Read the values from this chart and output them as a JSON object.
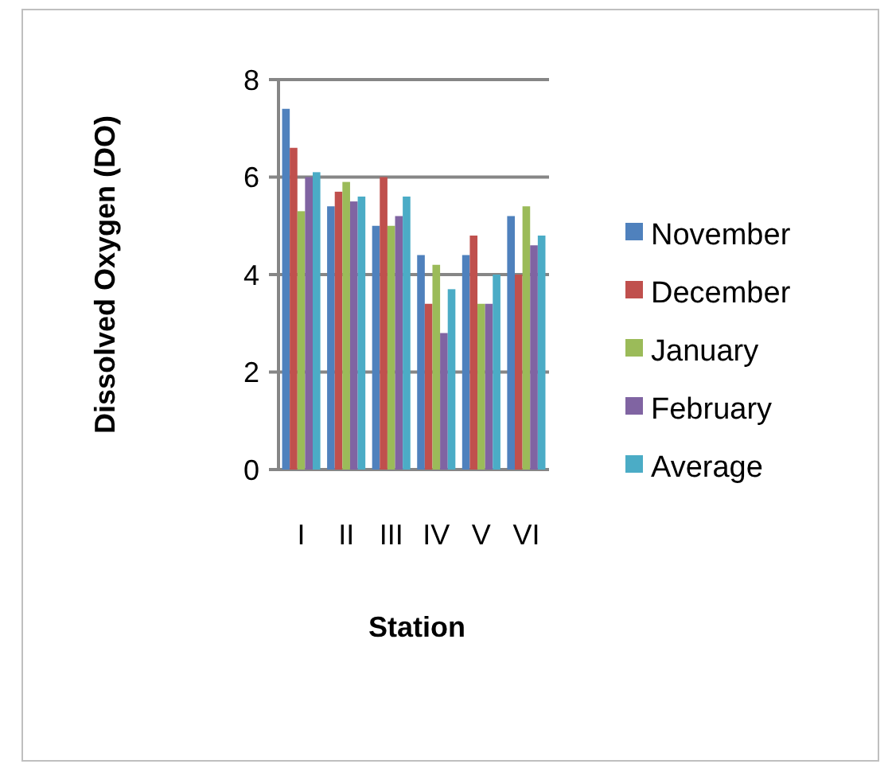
{
  "chart_data": {
    "type": "bar",
    "xlabel": "Station",
    "ylabel": "Dissolved Oxygen (DO)",
    "categories": [
      "I",
      "II",
      "III",
      "IV",
      "V",
      "VI"
    ],
    "series": [
      {
        "name": "November",
        "color": "#4f81bd",
        "values": [
          7.4,
          5.4,
          5.0,
          4.4,
          4.4,
          5.2
        ]
      },
      {
        "name": "December",
        "color": "#c0504d",
        "values": [
          6.6,
          5.7,
          6.0,
          3.4,
          4.8,
          4.0
        ]
      },
      {
        "name": "January",
        "color": "#9bbb59",
        "values": [
          5.3,
          5.9,
          5.0,
          4.2,
          3.4,
          5.4
        ]
      },
      {
        "name": "February",
        "color": "#8064a2",
        "values": [
          6.0,
          5.5,
          5.2,
          2.8,
          3.4,
          4.6
        ]
      },
      {
        "name": "Average",
        "color": "#4bacc6",
        "values": [
          6.1,
          5.6,
          5.6,
          3.7,
          4.0,
          4.8
        ]
      }
    ],
    "ylim": [
      0,
      8
    ],
    "yticks": [
      0,
      2,
      4,
      6,
      8
    ],
    "grid": "y",
    "legend": "right"
  }
}
